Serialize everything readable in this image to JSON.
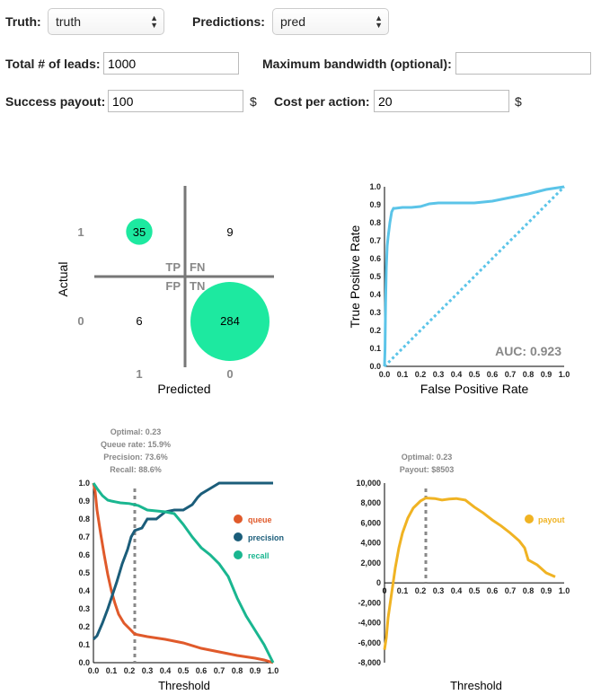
{
  "form": {
    "truth_label": "Truth:",
    "truth_value": "truth",
    "pred_label": "Predictions:",
    "pred_value": "pred",
    "leads_label": "Total # of leads:",
    "leads_value": "1000",
    "bandwidth_label": "Maximum bandwidth (optional):",
    "bandwidth_value": "",
    "payout_label": "Success payout:",
    "payout_value": "100",
    "cost_label": "Cost per action:",
    "cost_value": "20",
    "currency": "$"
  },
  "colors": {
    "accent_green": "#1de9a0",
    "roc": "#5bc4e8",
    "queue": "#e05a2b",
    "precision": "#1b5d7a",
    "recall": "#1ab690",
    "payout": "#f0b323"
  },
  "chart_data": [
    {
      "type": "table",
      "name": "confusion-matrix",
      "xlabel": "Predicted",
      "ylabel": "Actual",
      "x_ticks": [
        "1",
        "0"
      ],
      "y_ticks": [
        "1",
        "0"
      ],
      "cell_labels": {
        "tp": "TP",
        "fn": "FN",
        "fp": "FP",
        "tn": "TN"
      },
      "cells": {
        "tp": 35,
        "fn": 9,
        "fp": 6,
        "tn": 284
      }
    },
    {
      "type": "line",
      "name": "roc-curve",
      "xlabel": "False Positive Rate",
      "ylabel": "True Positive Rate",
      "xlim": [
        0,
        1
      ],
      "ylim": [
        0,
        1
      ],
      "ticks": [
        "0.0",
        "0.1",
        "0.2",
        "0.3",
        "0.4",
        "0.5",
        "0.6",
        "0.7",
        "0.8",
        "0.9",
        "1.0"
      ],
      "annotation": "AUC: 0.923",
      "points": [
        [
          0,
          0
        ],
        [
          0.003,
          0.1
        ],
        [
          0.006,
          0.35
        ],
        [
          0.01,
          0.55
        ],
        [
          0.015,
          0.67
        ],
        [
          0.02,
          0.72
        ],
        [
          0.03,
          0.8
        ],
        [
          0.04,
          0.86
        ],
        [
          0.05,
          0.88
        ],
        [
          0.06,
          0.88
        ],
        [
          0.1,
          0.885
        ],
        [
          0.15,
          0.885
        ],
        [
          0.2,
          0.89
        ],
        [
          0.25,
          0.905
        ],
        [
          0.3,
          0.91
        ],
        [
          0.4,
          0.91
        ],
        [
          0.5,
          0.91
        ],
        [
          0.6,
          0.92
        ],
        [
          0.7,
          0.94
        ],
        [
          0.8,
          0.96
        ],
        [
          0.9,
          0.985
        ],
        [
          1,
          1
        ]
      ]
    },
    {
      "type": "line",
      "name": "threshold-metrics",
      "xlabel": "Threshold",
      "xlim": [
        0,
        1
      ],
      "ylim": [
        0,
        1
      ],
      "ticks": [
        "0.0",
        "0.1",
        "0.2",
        "0.3",
        "0.4",
        "0.5",
        "0.6",
        "0.7",
        "0.8",
        "0.9",
        "1.0"
      ],
      "optimal": 0.23,
      "annotation": [
        "Optimal: 0.23",
        "Queue rate: 15.9%",
        "Precision: 73.6%",
        "Recall: 88.6%"
      ],
      "series": [
        {
          "name": "queue",
          "points": [
            [
              0,
              1
            ],
            [
              0.01,
              0.95
            ],
            [
              0.02,
              0.85
            ],
            [
              0.04,
              0.72
            ],
            [
              0.06,
              0.6
            ],
            [
              0.08,
              0.49
            ],
            [
              0.1,
              0.4
            ],
            [
              0.12,
              0.33
            ],
            [
              0.14,
              0.27
            ],
            [
              0.17,
              0.22
            ],
            [
              0.2,
              0.19
            ],
            [
              0.23,
              0.159
            ],
            [
              0.3,
              0.145
            ],
            [
              0.4,
              0.13
            ],
            [
              0.5,
              0.11
            ],
            [
              0.6,
              0.08
            ],
            [
              0.7,
              0.06
            ],
            [
              0.8,
              0.04
            ],
            [
              0.9,
              0.025
            ],
            [
              0.95,
              0.015
            ],
            [
              1,
              0
            ]
          ]
        },
        {
          "name": "precision",
          "points": [
            [
              0,
              0.13
            ],
            [
              0.02,
              0.15
            ],
            [
              0.05,
              0.22
            ],
            [
              0.08,
              0.3
            ],
            [
              0.1,
              0.36
            ],
            [
              0.13,
              0.45
            ],
            [
              0.16,
              0.55
            ],
            [
              0.19,
              0.63
            ],
            [
              0.21,
              0.7
            ],
            [
              0.23,
              0.736
            ],
            [
              0.27,
              0.75
            ],
            [
              0.3,
              0.8
            ],
            [
              0.35,
              0.8
            ],
            [
              0.4,
              0.84
            ],
            [
              0.45,
              0.85
            ],
            [
              0.5,
              0.85
            ],
            [
              0.55,
              0.88
            ],
            [
              0.58,
              0.92
            ],
            [
              0.6,
              0.94
            ],
            [
              0.65,
              0.97
            ],
            [
              0.7,
              1
            ],
            [
              0.8,
              1
            ],
            [
              1,
              1
            ]
          ]
        },
        {
          "name": "recall",
          "points": [
            [
              0,
              1
            ],
            [
              0.02,
              0.97
            ],
            [
              0.05,
              0.93
            ],
            [
              0.08,
              0.905
            ],
            [
              0.1,
              0.9
            ],
            [
              0.15,
              0.89
            ],
            [
              0.2,
              0.886
            ],
            [
              0.25,
              0.875
            ],
            [
              0.3,
              0.85
            ],
            [
              0.4,
              0.84
            ],
            [
              0.45,
              0.83
            ],
            [
              0.5,
              0.77
            ],
            [
              0.55,
              0.7
            ],
            [
              0.6,
              0.64
            ],
            [
              0.65,
              0.6
            ],
            [
              0.7,
              0.55
            ],
            [
              0.75,
              0.48
            ],
            [
              0.8,
              0.36
            ],
            [
              0.85,
              0.26
            ],
            [
              0.9,
              0.18
            ],
            [
              0.95,
              0.1
            ],
            [
              0.98,
              0.04
            ],
            [
              1,
              0
            ]
          ]
        }
      ]
    },
    {
      "type": "line",
      "name": "payout-curve",
      "xlabel": "Threshold",
      "xlim": [
        0,
        1
      ],
      "ylim": [
        -8000,
        10000
      ],
      "xticks": [
        "0",
        "0.1",
        "0.2",
        "0.3",
        "0.4",
        "0.5",
        "0.6",
        "0.7",
        "0.8",
        "0.9",
        "1.0"
      ],
      "yticks": [
        "-8,000",
        "-6,000",
        "-4,000",
        "-2,000",
        "0",
        "2,000",
        "4,000",
        "6,000",
        "8,000",
        "10,000"
      ],
      "optimal": 0.23,
      "annotation": [
        "Optimal: 0.23",
        "Payout: $8503"
      ],
      "series": [
        {
          "name": "payout",
          "points": [
            [
              0,
              -6700
            ],
            [
              0.01,
              -5500
            ],
            [
              0.02,
              -3500
            ],
            [
              0.04,
              -1000
            ],
            [
              0.06,
              1500
            ],
            [
              0.08,
              3500
            ],
            [
              0.1,
              5000
            ],
            [
              0.13,
              6500
            ],
            [
              0.16,
              7500
            ],
            [
              0.2,
              8200
            ],
            [
              0.23,
              8503
            ],
            [
              0.28,
              8450
            ],
            [
              0.32,
              8300
            ],
            [
              0.36,
              8400
            ],
            [
              0.4,
              8450
            ],
            [
              0.45,
              8300
            ],
            [
              0.5,
              7600
            ],
            [
              0.55,
              7000
            ],
            [
              0.6,
              6300
            ],
            [
              0.65,
              5700
            ],
            [
              0.7,
              5000
            ],
            [
              0.75,
              4200
            ],
            [
              0.78,
              3500
            ],
            [
              0.8,
              2300
            ],
            [
              0.85,
              1800
            ],
            [
              0.9,
              1000
            ],
            [
              0.95,
              600
            ]
          ]
        }
      ]
    }
  ]
}
